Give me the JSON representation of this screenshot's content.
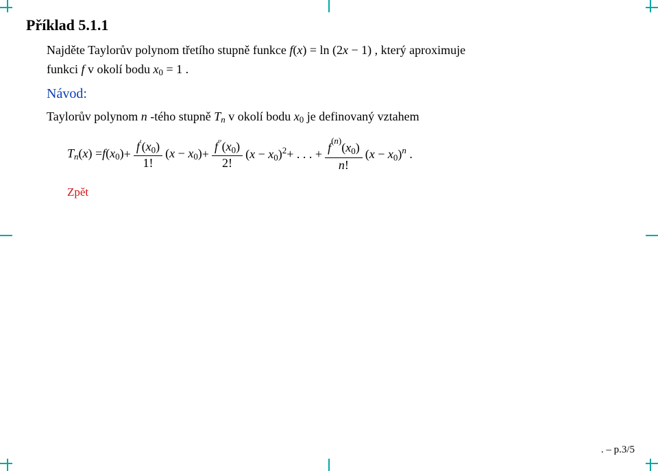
{
  "heading": "Příklad 5.1.1",
  "problem_pre": "Najděte Taylorův polynom třetího stupně funkce ",
  "problem_math_f": "f",
  "problem_math_x": "x",
  "problem_math_eq": " = ln (2",
  "problem_math_minus": " − 1) ,",
  "problem_post": " který aproximuje",
  "problem_line2_pre": "funkci ",
  "problem_line2_f": "f",
  "problem_line2_mid": " v okolí bodu ",
  "problem_line2_x": "x",
  "problem_line2_sub": "0",
  "problem_line2_eq": " = 1 .",
  "navod_label": "Návod:",
  "navod_text_pre": "Taylorův polynom ",
  "navod_text_n": "n",
  "navod_text_mid1": " -tého stupně ",
  "navod_text_T": "T",
  "navod_text_sub_n": "n",
  "navod_text_mid2": " v okolí bodu ",
  "navod_text_x": "x",
  "navod_text_sub0": "0",
  "navod_text_post": " je definovaný vztahem",
  "formula": {
    "lhs_T": "T",
    "lhs_n": "n",
    "lhs_open": "(",
    "lhs_x": "x",
    "lhs_close": ") = ",
    "f": "f",
    "x0_open": "(",
    "x": "x",
    "zero": "0",
    "x0_close": ")",
    "plus": " + ",
    "prime1_num_f": "f",
    "prime1_num_prime": "′",
    "den1": "1!",
    "term1_open": "(",
    "term1_minus": " − ",
    "term1_close": ")",
    "prime2_prime": "′′",
    "den2": "2!",
    "sq": "2",
    "dots": " + . . . + ",
    "supn_open": "(",
    "supn_n": "n",
    "supn_close": ")",
    "den_n": "n",
    "den_n_bang": "!",
    "pow_n": "n",
    "period": " ."
  },
  "zpet": "Zpět",
  "page_num": ". – p.3/5",
  "colors": {
    "crop": "#00a6a6",
    "navod": "#0b3fb2",
    "zpet": "#d11515",
    "text": "#000000",
    "background": "#ffffff"
  }
}
